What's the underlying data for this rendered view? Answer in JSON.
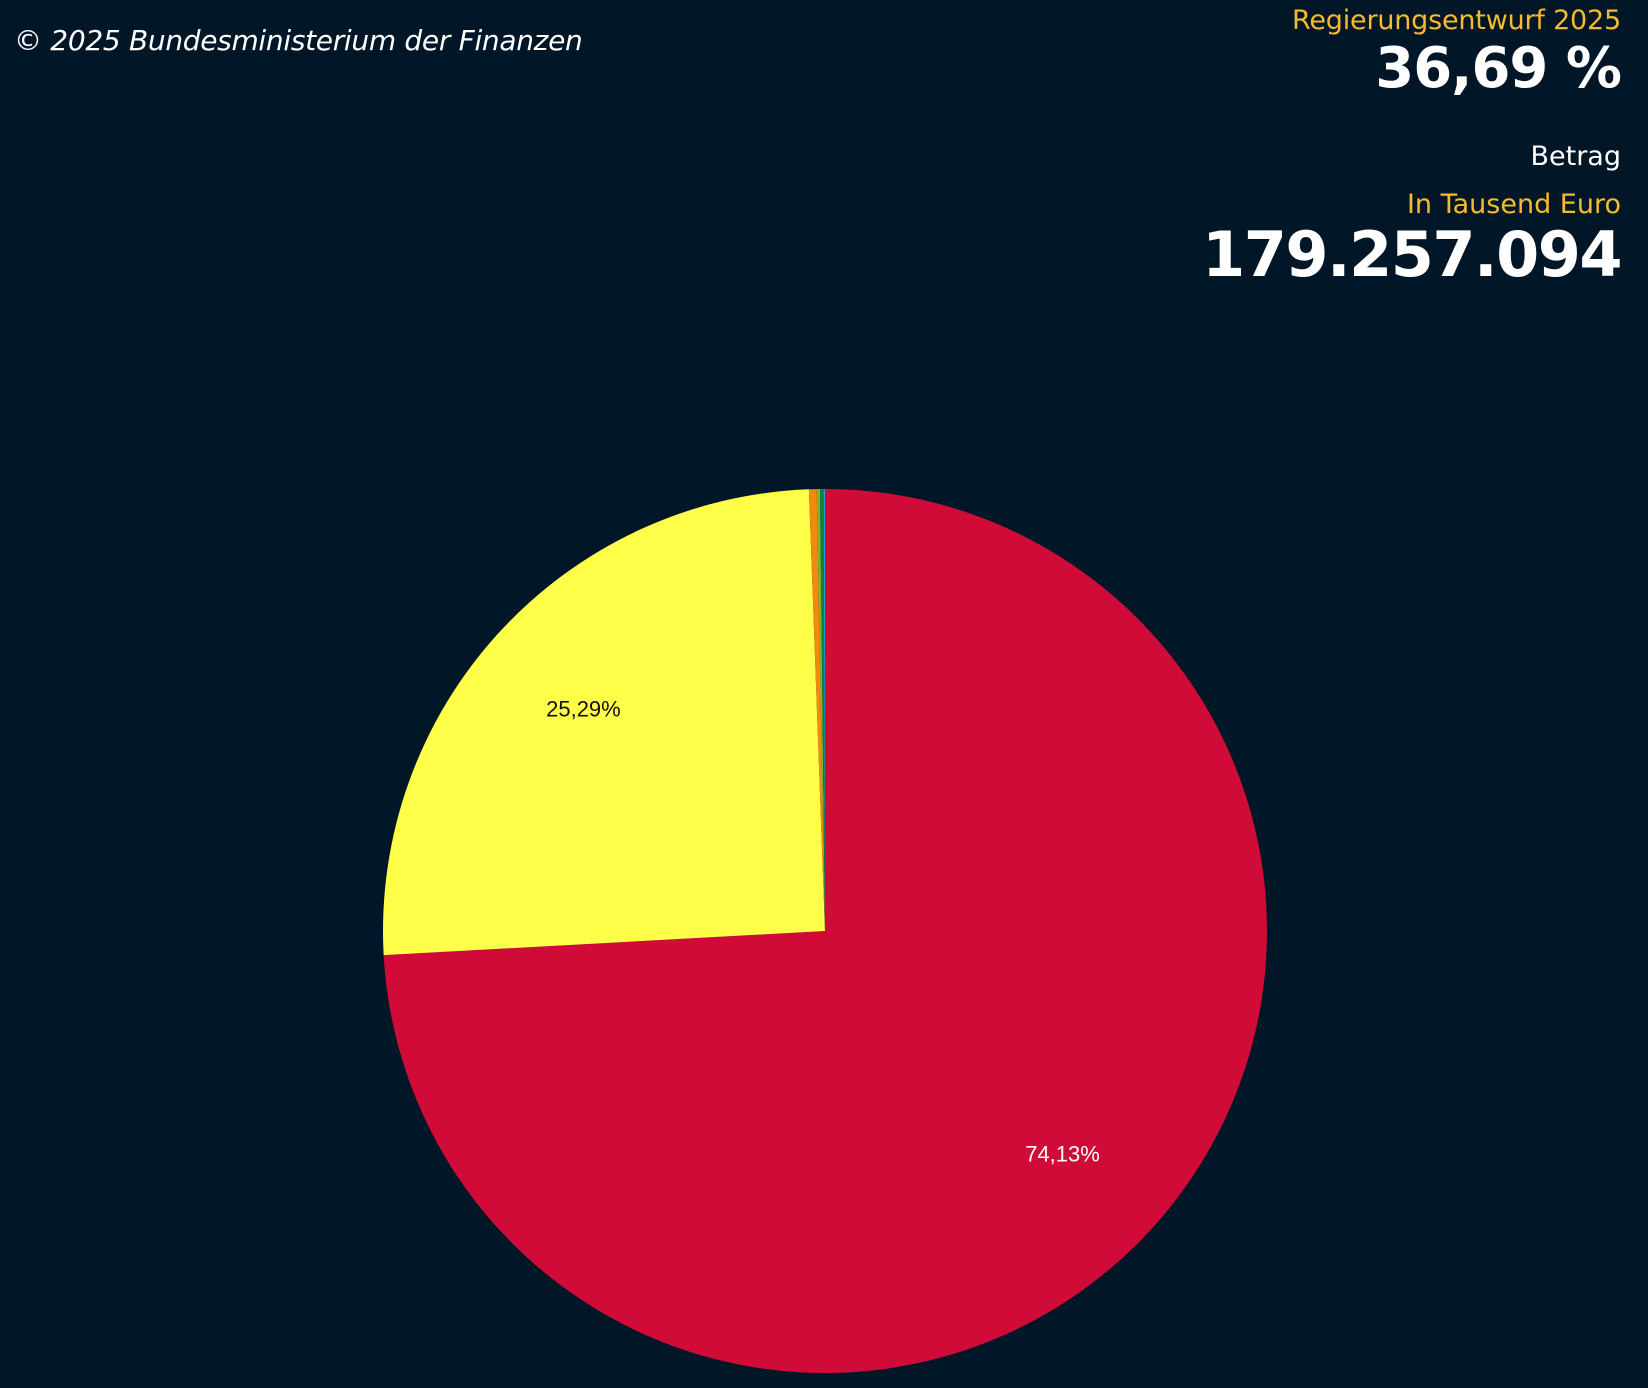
{
  "copyright": "© 2025 Bundesministerium der Finanzen",
  "stats": {
    "year_label": "Regierungsentwurf 2025",
    "percent": "36,69 %",
    "betrag_label": "Betrag",
    "unit_label": "In Tausend Euro",
    "amount": "179.257.094"
  },
  "colors": {
    "background": "#011727",
    "accent": "#f6bb2c"
  },
  "chart_data": {
    "type": "pie",
    "start_angle_deg": 0,
    "direction": "clockwise",
    "slices": [
      {
        "value": 74.13,
        "label": "74,13%",
        "color": "#d00b38",
        "label_color": "#ffffff"
      },
      {
        "value": 25.29,
        "label": "25,29%",
        "color": "#ffff4a",
        "label_color": "#111111"
      },
      {
        "value": 0.28,
        "label": "",
        "color": "#f28a10",
        "label_color": "#111111"
      },
      {
        "value": 0.12,
        "label": "",
        "color": "#78b830",
        "label_color": "#111111"
      },
      {
        "value": 0.13,
        "label": "",
        "color": "#1d7a3c",
        "label_color": "#111111"
      },
      {
        "value": 0.05,
        "label": "",
        "color": "#1aa0d8",
        "label_color": "#111111"
      }
    ]
  }
}
